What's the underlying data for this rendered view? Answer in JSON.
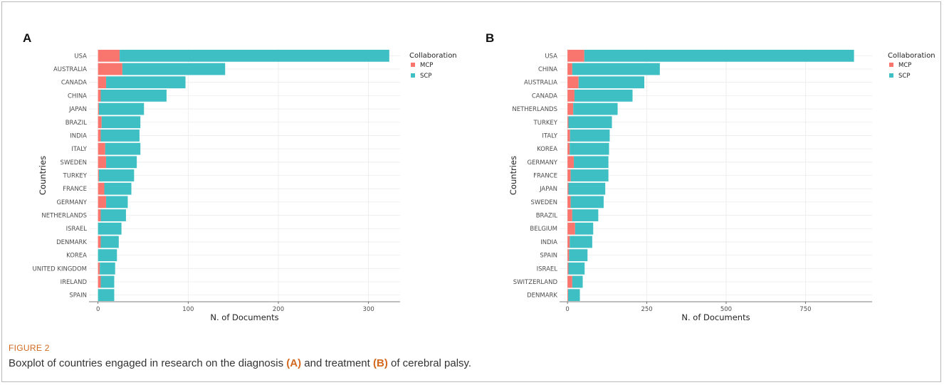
{
  "figure": {
    "label": "FIGURE 2",
    "caption_parts": [
      "Boxplot of countries engaged in research on the diagnosis ",
      "(A)",
      " and treatment ",
      "(B)",
      " of cerebral palsy."
    ]
  },
  "colors": {
    "MCP": "#f8766d",
    "SCP": "#3ebfc4",
    "grid": "#ebebeb",
    "text": "#4d4d4d"
  },
  "chart_data": [
    {
      "panel": "A",
      "type": "bar",
      "orientation": "horizontal",
      "stacked": true,
      "categories": [
        "USA",
        "AUSTRALIA",
        "CANADA",
        "CHINA",
        "JAPAN",
        "BRAZIL",
        "INDIA",
        "ITALY",
        "SWEDEN",
        "TURKEY",
        "FRANCE",
        "GERMANY",
        "NETHERLANDS",
        "ISRAEL",
        "DENMARK",
        "KOREA",
        "UNITED KINGDOM",
        "IRELAND",
        "SPAIN"
      ],
      "series": [
        {
          "name": "MCP",
          "values": [
            24,
            27,
            9,
            3,
            1,
            4,
            3,
            8,
            9,
            1,
            7,
            9,
            3,
            0,
            3,
            0,
            2,
            3,
            0
          ]
        },
        {
          "name": "SCP",
          "values": [
            299,
            114,
            88,
            73,
            50,
            43,
            43,
            39,
            34,
            39,
            30,
            24,
            28,
            26,
            20,
            21,
            17,
            15,
            18
          ]
        }
      ],
      "xlabel": "N. of Documents",
      "ylabel": "Countries",
      "xlim": [
        -10,
        335
      ],
      "xticks": [
        0,
        100,
        200,
        300
      ],
      "legend": {
        "title": "Collaboration",
        "entries": [
          "MCP",
          "SCP"
        ],
        "position": "right"
      }
    },
    {
      "panel": "B",
      "type": "bar",
      "orientation": "horizontal",
      "stacked": true,
      "categories": [
        "USA",
        "CHINA",
        "AUSTRALIA",
        "CANADA",
        "NETHERLANDS",
        "TURKEY",
        "ITALY",
        "KOREA",
        "GERMANY",
        "FRANCE",
        "JAPAN",
        "SWEDEN",
        "BRAZIL",
        "BELGIUM",
        "INDIA",
        "SPAIN",
        "ISRAEL",
        "SWITZERLAND",
        "DENMARK"
      ],
      "series": [
        {
          "name": "MCP",
          "values": [
            53,
            15,
            35,
            22,
            18,
            3,
            8,
            7,
            20,
            10,
            3,
            10,
            15,
            24,
            7,
            5,
            3,
            15,
            2
          ]
        },
        {
          "name": "SCP",
          "values": [
            850,
            276,
            207,
            183,
            140,
            137,
            125,
            124,
            109,
            119,
            116,
            104,
            82,
            57,
            71,
            58,
            51,
            33,
            37
          ]
        }
      ],
      "xlabel": "N. of Documents",
      "ylabel": "Countries",
      "xlim": [
        -25,
        960
      ],
      "xticks": [
        0,
        250,
        500,
        750
      ],
      "legend": {
        "title": "Collaboration",
        "entries": [
          "MCP",
          "SCP"
        ],
        "position": "right"
      }
    }
  ]
}
